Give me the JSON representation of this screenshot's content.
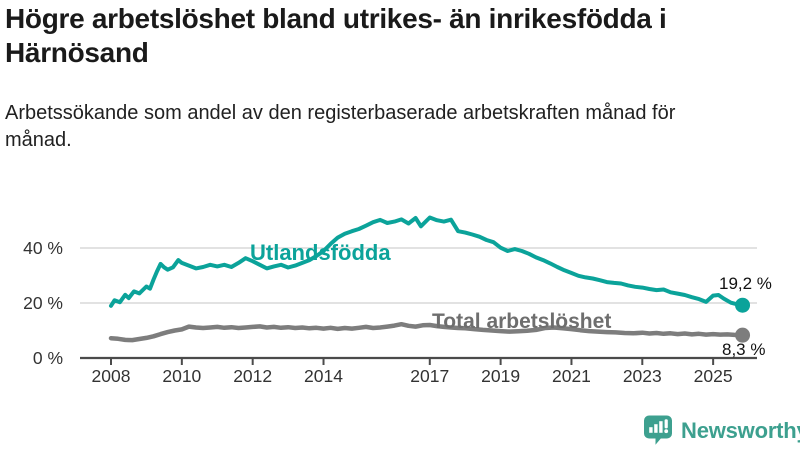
{
  "header": {
    "title": "Högre arbetslöshet bland utrikes- än inrikesfödda i Härnösand",
    "subtitle": "Arbetssökande som andel av den registerbaserade arbetskraften månad för månad."
  },
  "chart_data": {
    "type": "line",
    "title": "Högre arbetslöshet bland utrikes- än inrikesfödda i Härnösand",
    "xlabel": "",
    "ylabel": "",
    "xlim": [
      2007.9,
      2026.2
    ],
    "ylim": [
      0,
      55
    ],
    "grid": "horizontal",
    "legend_position": "inline-labels",
    "yticks": [
      0,
      20,
      40
    ],
    "ytick_labels": [
      "0 %",
      "20 %",
      "40 %"
    ],
    "xticks": [
      2008,
      2010,
      2012,
      2014,
      2017,
      2019,
      2021,
      2023,
      2025
    ],
    "axis_color": "#4b4b4b",
    "gridline_color": "#d9d9d9",
    "tick_label_color": "#333333",
    "series": [
      {
        "name": "Utlandsfödda",
        "color": "#0ba39a",
        "end_label": "19,2 %",
        "end_value": 19.2,
        "points": [
          [
            2008.0,
            19.0
          ],
          [
            2008.1,
            21.0
          ],
          [
            2008.25,
            20.3
          ],
          [
            2008.4,
            23.0
          ],
          [
            2008.5,
            21.8
          ],
          [
            2008.65,
            24.2
          ],
          [
            2008.8,
            23.5
          ],
          [
            2009.0,
            26.0
          ],
          [
            2009.1,
            25.2
          ],
          [
            2009.2,
            28.5
          ],
          [
            2009.3,
            31.5
          ],
          [
            2009.4,
            34.2
          ],
          [
            2009.5,
            33.0
          ],
          [
            2009.6,
            32.1
          ],
          [
            2009.75,
            33.0
          ],
          [
            2009.9,
            35.6
          ],
          [
            2010.0,
            34.6
          ],
          [
            2010.2,
            33.6
          ],
          [
            2010.4,
            32.6
          ],
          [
            2010.6,
            33.1
          ],
          [
            2010.8,
            33.9
          ],
          [
            2011.0,
            33.3
          ],
          [
            2011.2,
            33.9
          ],
          [
            2011.4,
            33.1
          ],
          [
            2011.6,
            34.6
          ],
          [
            2011.8,
            36.3
          ],
          [
            2012.0,
            35.2
          ],
          [
            2012.2,
            33.9
          ],
          [
            2012.4,
            32.6
          ],
          [
            2012.6,
            33.3
          ],
          [
            2012.8,
            33.9
          ],
          [
            2013.0,
            32.9
          ],
          [
            2013.2,
            33.6
          ],
          [
            2013.4,
            34.6
          ],
          [
            2013.6,
            35.6
          ],
          [
            2013.8,
            37.1
          ],
          [
            2014.0,
            38.9
          ],
          [
            2014.2,
            41.5
          ],
          [
            2014.4,
            43.8
          ],
          [
            2014.6,
            45.2
          ],
          [
            2014.8,
            46.1
          ],
          [
            2015.0,
            46.9
          ],
          [
            2015.2,
            48.1
          ],
          [
            2015.4,
            49.4
          ],
          [
            2015.6,
            50.2
          ],
          [
            2015.8,
            49.1
          ],
          [
            2016.0,
            49.6
          ],
          [
            2016.2,
            50.4
          ],
          [
            2016.4,
            48.9
          ],
          [
            2016.6,
            50.9
          ],
          [
            2016.75,
            47.9
          ],
          [
            2017.0,
            51.1
          ],
          [
            2017.2,
            50.1
          ],
          [
            2017.4,
            49.6
          ],
          [
            2017.6,
            50.3
          ],
          [
            2017.8,
            46.1
          ],
          [
            2018.0,
            45.6
          ],
          [
            2018.2,
            44.9
          ],
          [
            2018.4,
            44.1
          ],
          [
            2018.6,
            42.9
          ],
          [
            2018.8,
            42.1
          ],
          [
            2019.0,
            40.1
          ],
          [
            2019.2,
            38.9
          ],
          [
            2019.4,
            39.6
          ],
          [
            2019.6,
            38.9
          ],
          [
            2019.8,
            37.9
          ],
          [
            2020.0,
            36.6
          ],
          [
            2020.2,
            35.6
          ],
          [
            2020.4,
            34.4
          ],
          [
            2020.6,
            33.1
          ],
          [
            2020.8,
            31.9
          ],
          [
            2021.0,
            30.9
          ],
          [
            2021.2,
            29.9
          ],
          [
            2021.4,
            29.3
          ],
          [
            2021.6,
            28.9
          ],
          [
            2021.8,
            28.3
          ],
          [
            2022.0,
            27.6
          ],
          [
            2022.2,
            27.3
          ],
          [
            2022.4,
            27.1
          ],
          [
            2022.6,
            26.4
          ],
          [
            2022.8,
            25.9
          ],
          [
            2023.0,
            25.6
          ],
          [
            2023.2,
            25.1
          ],
          [
            2023.4,
            24.7
          ],
          [
            2023.6,
            24.9
          ],
          [
            2023.8,
            23.9
          ],
          [
            2024.0,
            23.4
          ],
          [
            2024.2,
            22.9
          ],
          [
            2024.4,
            22.1
          ],
          [
            2024.6,
            21.4
          ],
          [
            2024.8,
            20.4
          ],
          [
            2025.0,
            22.7
          ],
          [
            2025.15,
            22.9
          ],
          [
            2025.3,
            21.6
          ],
          [
            2025.5,
            20.1
          ],
          [
            2025.65,
            19.6
          ],
          [
            2025.83,
            19.2
          ]
        ]
      },
      {
        "name": "Total arbetslöshet",
        "color": "#7d7d7d",
        "end_label": "8,3 %",
        "end_value": 8.3,
        "points": [
          [
            2008.0,
            7.2
          ],
          [
            2008.2,
            7.0
          ],
          [
            2008.4,
            6.6
          ],
          [
            2008.6,
            6.5
          ],
          [
            2008.8,
            6.9
          ],
          [
            2009.0,
            7.3
          ],
          [
            2009.2,
            7.9
          ],
          [
            2009.4,
            8.7
          ],
          [
            2009.6,
            9.4
          ],
          [
            2009.8,
            10.0
          ],
          [
            2010.0,
            10.4
          ],
          [
            2010.2,
            11.4
          ],
          [
            2010.4,
            11.1
          ],
          [
            2010.6,
            10.9
          ],
          [
            2010.8,
            11.1
          ],
          [
            2011.0,
            11.3
          ],
          [
            2011.2,
            11.0
          ],
          [
            2011.4,
            11.2
          ],
          [
            2011.6,
            10.9
          ],
          [
            2011.8,
            11.1
          ],
          [
            2012.0,
            11.3
          ],
          [
            2012.2,
            11.5
          ],
          [
            2012.4,
            11.1
          ],
          [
            2012.6,
            11.3
          ],
          [
            2012.8,
            11.0
          ],
          [
            2013.0,
            11.2
          ],
          [
            2013.2,
            10.9
          ],
          [
            2013.4,
            11.1
          ],
          [
            2013.6,
            10.8
          ],
          [
            2013.8,
            11.0
          ],
          [
            2014.0,
            10.7
          ],
          [
            2014.2,
            11.0
          ],
          [
            2014.4,
            10.6
          ],
          [
            2014.6,
            10.9
          ],
          [
            2014.8,
            10.7
          ],
          [
            2015.0,
            11.0
          ],
          [
            2015.2,
            11.3
          ],
          [
            2015.4,
            10.9
          ],
          [
            2015.6,
            11.1
          ],
          [
            2015.8,
            11.4
          ],
          [
            2016.0,
            11.8
          ],
          [
            2016.2,
            12.3
          ],
          [
            2016.4,
            11.7
          ],
          [
            2016.6,
            11.4
          ],
          [
            2016.8,
            11.9
          ],
          [
            2017.0,
            12.0
          ],
          [
            2017.2,
            11.6
          ],
          [
            2017.4,
            11.3
          ],
          [
            2017.6,
            11.1
          ],
          [
            2017.8,
            10.9
          ],
          [
            2018.0,
            10.8
          ],
          [
            2018.25,
            10.5
          ],
          [
            2018.5,
            10.2
          ],
          [
            2018.75,
            10.0
          ],
          [
            2019.0,
            9.8
          ],
          [
            2019.25,
            9.6
          ],
          [
            2019.5,
            9.7
          ],
          [
            2019.75,
            9.9
          ],
          [
            2020.0,
            10.2
          ],
          [
            2020.25,
            10.9
          ],
          [
            2020.5,
            11.1
          ],
          [
            2020.75,
            10.8
          ],
          [
            2021.0,
            10.5
          ],
          [
            2021.25,
            10.1
          ],
          [
            2021.5,
            9.8
          ],
          [
            2021.75,
            9.6
          ],
          [
            2022.0,
            9.4
          ],
          [
            2022.25,
            9.3
          ],
          [
            2022.5,
            9.1
          ],
          [
            2022.75,
            9.0
          ],
          [
            2023.0,
            9.2
          ],
          [
            2023.2,
            8.9
          ],
          [
            2023.4,
            9.1
          ],
          [
            2023.6,
            8.8
          ],
          [
            2023.8,
            9.0
          ],
          [
            2024.0,
            8.7
          ],
          [
            2024.2,
            8.9
          ],
          [
            2024.4,
            8.6
          ],
          [
            2024.6,
            8.8
          ],
          [
            2024.8,
            8.5
          ],
          [
            2025.0,
            8.7
          ],
          [
            2025.2,
            8.5
          ],
          [
            2025.4,
            8.6
          ],
          [
            2025.6,
            8.4
          ],
          [
            2025.83,
            8.3
          ]
        ]
      }
    ]
  },
  "branding": {
    "logo_text": "Newsworthy",
    "logo_color": "#3da08f"
  }
}
